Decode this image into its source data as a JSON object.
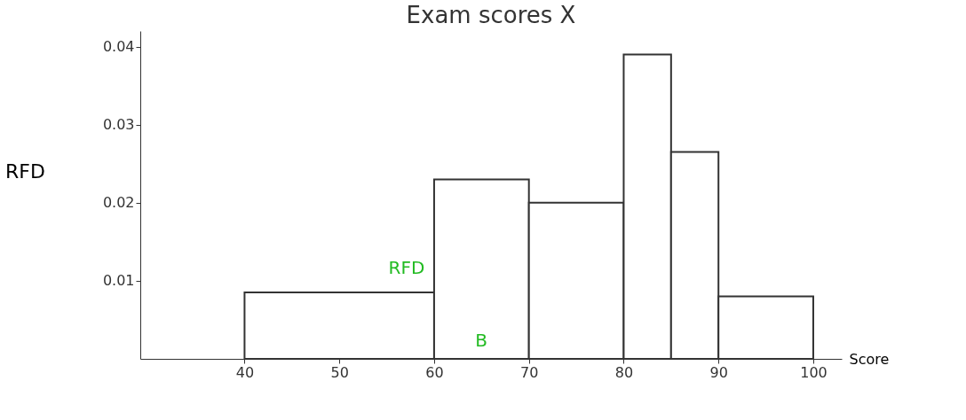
{
  "chart_data": {
    "type": "histogram",
    "title": "Exam scores X",
    "xlabel": "Score",
    "ylabel": "RFD",
    "bins": [
      40,
      60,
      70,
      80,
      85,
      90,
      100
    ],
    "values": [
      0.0085,
      0.023,
      0.02,
      0.039,
      0.0265,
      0.008
    ],
    "color": "#ffffff",
    "xlim": [
      29,
      103
    ],
    "xticks": [
      40,
      50,
      60,
      70,
      80,
      90,
      100
    ],
    "ylim": [
      0,
      0.042
    ],
    "yticks": [
      0.01,
      0.02,
      0.03,
      0.04
    ],
    "grid": false,
    "annotations": [
      "RFD",
      "B"
    ]
  }
}
